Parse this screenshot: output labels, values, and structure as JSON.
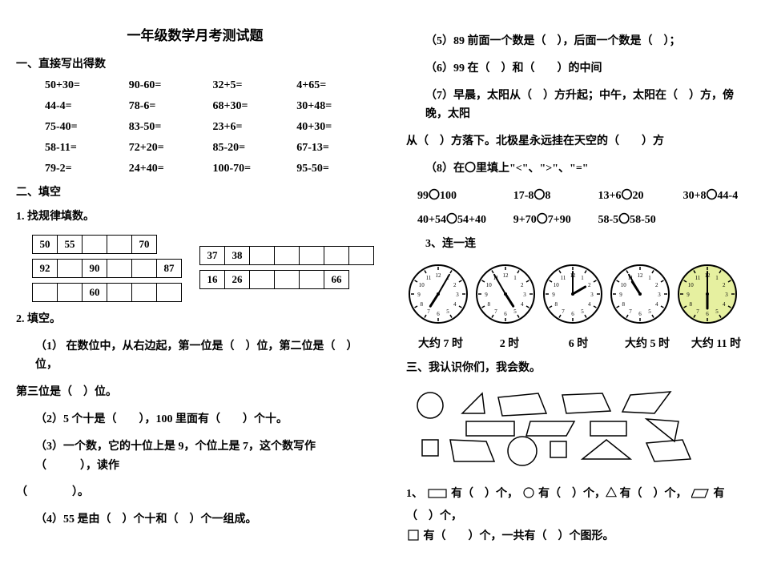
{
  "title": "一年级数学月考测试题",
  "sectionA": "一、直接写出得数",
  "arith": [
    "50+30=",
    "90-60=",
    "32+5=",
    "4+65=",
    "44-4=",
    "78-6=",
    "68+30=",
    "30+48=",
    "75-40=",
    "83-50=",
    "23+6=",
    "40+30=",
    "58-11=",
    "72+20=",
    "85-20=",
    "67-13=",
    "79-2=",
    "24+40=",
    "100-70=",
    "95-50="
  ],
  "sectionB": "二、填空",
  "b1": "1. 找规律填数。",
  "patternLeft": {
    "r1": [
      "50",
      "55",
      "",
      "",
      "70"
    ],
    "r2": [
      "92",
      "",
      "90",
      "",
      "",
      "87"
    ],
    "r3": [
      "",
      "",
      "60",
      "",
      "",
      ""
    ]
  },
  "patternRight": {
    "r1": [
      "37",
      "38",
      "",
      "",
      "",
      "",
      ""
    ],
    "r2": [
      "16",
      "26",
      "",
      "",
      "",
      "66"
    ]
  },
  "b2": "2. 填空。",
  "b2_1": "（1） 在数位中，从右边起，第一位是（　）位，第二位是（　）位，",
  "b2_1b": "第三位是（　）位。",
  "b2_2": "（2）5 个十是（　　），100 里面有（　　）个十。",
  "b2_3": "（3）一个数，它的十位上是 9，个位上是 7，这个数写作（　　　），读作",
  "b2_3b": "（　　　　）。",
  "b2_4": "（4）55 是由（　）个十和（　）个一组成。",
  "b2_5": "（5）89 前面一个数是（　），后面一个数是（　）；",
  "b2_6": "（6）99 在（　）和（　　）的中间",
  "b2_7": "（7）早晨，太阳从（　）方升起；中午，太阳在（　）方，傍晚，太阳",
  "b2_7b": "从（　）方落下。北极星永远挂在天空的（　　）方",
  "b2_8": "（8）在〇里填上\"<\"、\">\"、\"=\"",
  "compare": {
    "r1": [
      "99〇100",
      "17-8〇8",
      "13+6〇20",
      "30+8〇44-4"
    ],
    "r2": [
      "40+54〇54+40",
      "9+70〇7+90",
      "58-5〇58-50"
    ]
  },
  "b3": "3、连一连",
  "clocks": [
    {
      "hour": 7,
      "min": 5,
      "color": "#ffffff"
    },
    {
      "hour": 4,
      "min": 55,
      "color": "#ffffff"
    },
    {
      "hour": 2,
      "min": 0,
      "color": "#ffffff"
    },
    {
      "hour": 10,
      "min": 55,
      "color": "#ffffff"
    },
    {
      "hour": 6,
      "min": 0,
      "color": "#e6f0a0"
    }
  ],
  "clockLabels": [
    "大约 7 时",
    "2 时",
    "6 时",
    "大约 5 时",
    "大约 11 时"
  ],
  "sectionC": "三、我认识你们，我会数。",
  "shapeLine_prefix": "1、",
  "shapeLine1": "有（　）个，",
  "shapeLine1b": "有（　）个，△ 有（　）个，",
  "shapeLine1c": "有（　）个，",
  "shapeLine2": "有（　　）个，一共有（　）个图形。"
}
